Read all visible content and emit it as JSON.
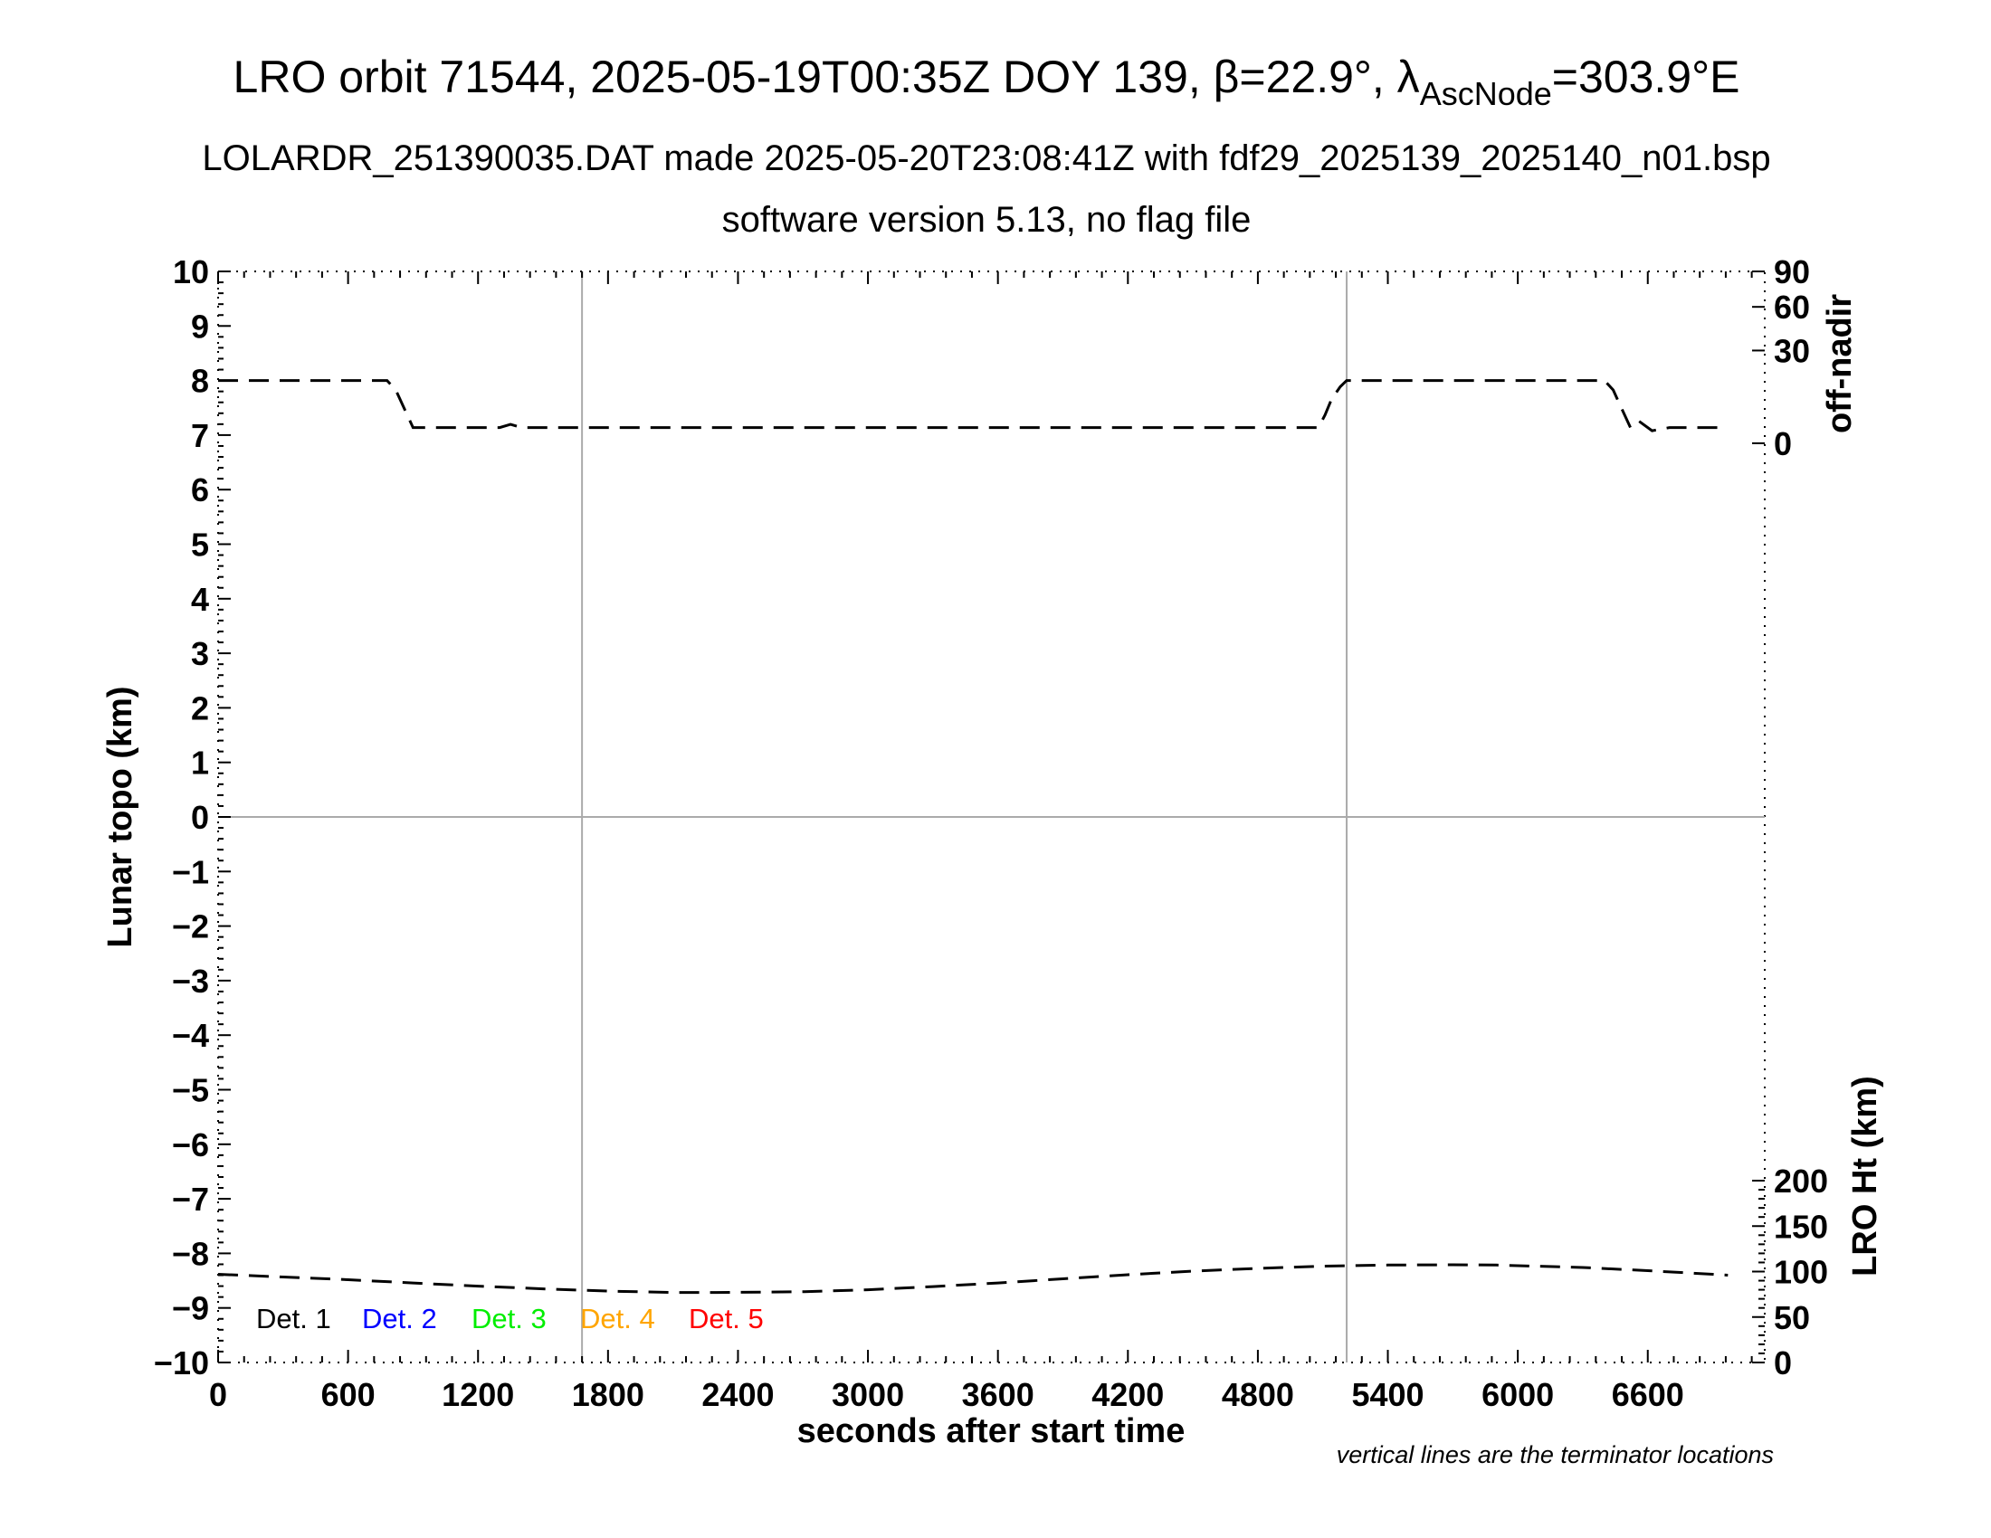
{
  "header": {
    "title_main": "LRO orbit 71544, 2025-05-19T00:35Z DOY 139, β=22.9°, λ",
    "title_sub": "AscNode",
    "title_end": "=303.9°E",
    "line2": "LOLARDR_251390035.DAT made 2025-05-20T23:08:41Z with fdf29_2025139_2025140_n01.bsp",
    "line3": "software version 5.13, no flag file"
  },
  "footer_note": "vertical lines are the terminator locations",
  "chart_data": {
    "type": "line",
    "xlabel": "seconds after start time",
    "ylabel": "Lunar topo (km)",
    "right_upper_label": "off-nadir",
    "right_lower_label": "LRO Ht (km)",
    "xlim": [
      0,
      7140
    ],
    "ylim": [
      -10,
      10
    ],
    "x_ticks": [
      "0",
      "600",
      "1200",
      "1800",
      "2400",
      "3000",
      "3600",
      "4200",
      "4800",
      "5400",
      "6000",
      "6600"
    ],
    "y_ticks": [
      "−10",
      "−9",
      "−8",
      "−7",
      "−6",
      "−5",
      "−4",
      "−3",
      "−2",
      "−1",
      "0",
      "1",
      "2",
      "3",
      "4",
      "5",
      "6",
      "7",
      "8",
      "9",
      "10"
    ],
    "offnadir_ticks": [
      {
        "label": "90",
        "value": 90
      },
      {
        "label": "60",
        "value": 60
      },
      {
        "label": "30",
        "value": 30
      },
      {
        "label": "0",
        "value": 0
      }
    ],
    "height_ticks": [
      {
        "label": "200",
        "value": 200
      },
      {
        "label": "150",
        "value": 150
      },
      {
        "label": "100",
        "value": 100
      },
      {
        "label": "50",
        "value": 50
      },
      {
        "label": "0",
        "value": 0
      }
    ],
    "terminator_x": [
      1680,
      5210
    ],
    "grid": "terminators and zero line",
    "legend": [
      {
        "label": "Det. 1",
        "color": "#000000"
      },
      {
        "label": "Det. 2",
        "color": "#0000ff"
      },
      {
        "label": "Det. 3",
        "color": "#00ee00"
      },
      {
        "label": "Det. 4",
        "color": "#ffa500"
      },
      {
        "label": "Det. 5",
        "color": "#ff0000"
      }
    ],
    "legend_placement": "bottom-left",
    "series": [
      {
        "name": "off-nadir",
        "axis": "off-nadir",
        "x": [
          0,
          780,
          820,
          860,
          900,
          960,
          1050,
          1200,
          1300,
          1350,
          1400,
          1600,
          2400,
          3600,
          4800,
          5080,
          5110,
          5140,
          5180,
          5210,
          6000,
          6400,
          6440,
          6480,
          6520,
          6560,
          6620,
          6700,
          6800,
          6970
        ],
        "y": [
          20,
          20,
          17,
          11,
          5,
          5,
          5,
          5,
          5,
          6,
          5,
          5,
          5,
          5,
          5,
          5,
          9,
          14,
          18,
          20,
          20,
          20,
          17,
          11,
          5,
          7,
          4,
          5,
          5,
          5
        ]
      },
      {
        "name": "LRO Ht",
        "axis": "LRO Ht (km)",
        "x": [
          0,
          300,
          600,
          900,
          1200,
          1500,
          1800,
          2100,
          2300,
          2700,
          3000,
          3300,
          3600,
          3900,
          4200,
          4500,
          4800,
          5100,
          5400,
          5700,
          5900,
          6300,
          6600,
          6900,
          6970
        ],
        "y": [
          97,
          94,
          91,
          87.5,
          84,
          81,
          78.5,
          77,
          77,
          77.8,
          80,
          83.5,
          87.5,
          92,
          96.5,
          100.5,
          103.5,
          106,
          107.2,
          107.5,
          107.2,
          104.5,
          101,
          97,
          96
        ]
      }
    ]
  }
}
